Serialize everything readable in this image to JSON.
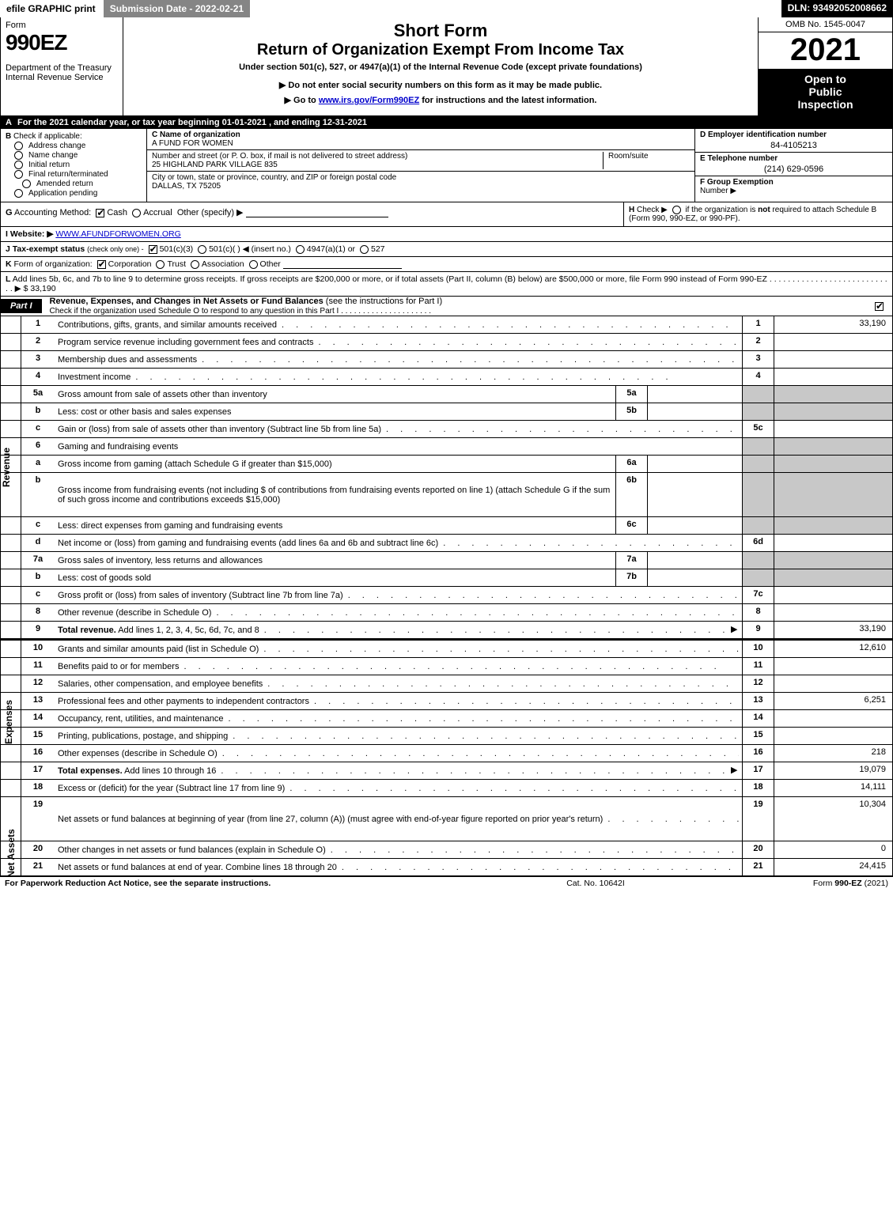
{
  "topbar": {
    "efile": "efile GRAPHIC print",
    "submission": "Submission Date - 2022-02-21",
    "dln": "DLN: 93492052008662"
  },
  "header": {
    "form_word": "Form",
    "form_num": "990EZ",
    "dept1": "Department of the Treasury",
    "dept2": "Internal Revenue Service",
    "short_form": "Short Form",
    "return_title": "Return of Organization Exempt From Income Tax",
    "under": "Under section 501(c), 527, or 4947(a)(1) of the Internal Revenue Code (except private foundations)",
    "warn": "▶ Do not enter social security numbers on this form as it may be made public.",
    "goto_prefix": "▶ Go to ",
    "goto_link": "www.irs.gov/Form990EZ",
    "goto_suffix": " for instructions and the latest information.",
    "omb": "OMB No. 1545-0047",
    "year": "2021",
    "open1": "Open to",
    "open2": "Public",
    "open3": "Inspection"
  },
  "lineA": {
    "letter": "A",
    "text": "For the 2021 calendar year, or tax year beginning 01-01-2021 , and ending 12-31-2021"
  },
  "sectionB": {
    "letter": "B",
    "label": "Check if applicable:",
    "opts": [
      "Address change",
      "Name change",
      "Initial return",
      "Final return/terminated",
      "Amended return",
      "Application pending"
    ]
  },
  "sectionC": {
    "name_lbl": "C Name of organization",
    "name_val": "A FUND FOR WOMEN",
    "street_lbl": "Number and street (or P. O. box, if mail is not delivered to street address)",
    "street_val": "25 HIGHLAND PARK VILLAGE 835",
    "room_lbl": "Room/suite",
    "city_lbl": "City or town, state or province, country, and ZIP or foreign postal code",
    "city_val": "DALLAS, TX  75205"
  },
  "sectionDEF": {
    "d_lbl": "D Employer identification number",
    "d_val": "84-4105213",
    "e_lbl": "E Telephone number",
    "e_val": "(214) 629-0596",
    "f_lbl": "F Group Exemption",
    "f_lbl2": "Number   ▶"
  },
  "lineG": {
    "letter": "G",
    "label": "Accounting Method:",
    "cash": "Cash",
    "accrual": "Accrual",
    "other": "Other (specify) ▶"
  },
  "lineH": {
    "letter": "H",
    "text1": "Check ▶",
    "text2": "if the organization is ",
    "not": "not",
    "text3": " required to attach Schedule B",
    "text4": "(Form 990, 990-EZ, or 990-PF)."
  },
  "lineI": {
    "letter": "I",
    "label": "Website: ▶",
    "url": "WWW.AFUNDFORWOMEN.ORG"
  },
  "lineJ": {
    "letter": "J",
    "label": "Tax-exempt status",
    "sub": "(check only one) -",
    "o1": "501(c)(3)",
    "o2": "501(c)(  ) ◀ (insert no.)",
    "o3": "4947(a)(1) or",
    "o4": "527"
  },
  "lineK": {
    "letter": "K",
    "label": "Form of organization:",
    "o1": "Corporation",
    "o2": "Trust",
    "o3": "Association",
    "o4": "Other"
  },
  "lineL": {
    "letter": "L",
    "text": "Add lines 5b, 6c, and 7b to line 9 to determine gross receipts. If gross receipts are $200,000 or more, or if total assets (Part II, column (B) below) are $500,000 or more, file Form 990 instead of Form 990-EZ  . . . . . . . . . . . . . . . . . . . . . . . . . . . . ▶ $ 33,190"
  },
  "part1": {
    "tab": "Part I",
    "title": "Revenue, Expenses, and Changes in Net Assets or Fund Balances ",
    "sub": "(see the instructions for Part I)",
    "check_line": "Check if the organization used Schedule O to respond to any question in this Part I . . . . . . . . . . . . . . . . . . . . ."
  },
  "vlabels": {
    "revenue": "Revenue",
    "expenses": "Expenses",
    "netassets": "Net Assets"
  },
  "rows": [
    {
      "n": "1",
      "desc": "Contributions, gifts, grants, and similar amounts received",
      "num": "1",
      "amt": "33,190"
    },
    {
      "n": "2",
      "desc": "Program service revenue including government fees and contracts",
      "num": "2",
      "amt": ""
    },
    {
      "n": "3",
      "desc": "Membership dues and assessments",
      "num": "3",
      "amt": ""
    },
    {
      "n": "4",
      "desc": "Investment income",
      "num": "4",
      "amt": ""
    },
    {
      "n": "5a",
      "desc": "Gross amount from sale of assets other than inventory",
      "sub": "5a",
      "gray": true
    },
    {
      "n": "b",
      "desc": "Less: cost or other basis and sales expenses",
      "sub": "5b",
      "gray": true
    },
    {
      "n": "c",
      "desc": "Gain or (loss) from sale of assets other than inventory (Subtract line 5b from line 5a)",
      "num": "5c",
      "amt": ""
    },
    {
      "n": "6",
      "desc": "Gaming and fundraising events",
      "gray": true,
      "noamt": true
    },
    {
      "n": "a",
      "desc": "Gross income from gaming (attach Schedule G if greater than $15,000)",
      "sub": "6a",
      "gray": true
    },
    {
      "n": "b",
      "desc": "Gross income from fundraising events (not including $                    of contributions from fundraising events reported on line 1) (attach Schedule G if the sum of such gross income and contributions exceeds $15,000)",
      "sub": "6b",
      "gray": true,
      "tall": true
    },
    {
      "n": "c",
      "desc": "Less: direct expenses from gaming and fundraising events",
      "sub": "6c",
      "gray": true
    },
    {
      "n": "d",
      "desc": "Net income or (loss) from gaming and fundraising events (add lines 6a and 6b and subtract line 6c)",
      "num": "6d",
      "amt": ""
    },
    {
      "n": "7a",
      "desc": "Gross sales of inventory, less returns and allowances",
      "sub": "7a",
      "gray": true
    },
    {
      "n": "b",
      "desc": "Less: cost of goods sold",
      "sub": "7b",
      "gray": true
    },
    {
      "n": "c",
      "desc": "Gross profit or (loss) from sales of inventory (Subtract line 7b from line 7a)",
      "num": "7c",
      "amt": ""
    },
    {
      "n": "8",
      "desc": "Other revenue (describe in Schedule O)",
      "num": "8",
      "amt": ""
    },
    {
      "n": "9",
      "desc": "Total revenue. Add lines 1, 2, 3, 4, 5c, 6d, 7c, and 8",
      "num": "9",
      "amt": "33,190",
      "bold": true,
      "arrow": true
    }
  ],
  "rows_exp": [
    {
      "n": "10",
      "desc": "Grants and similar amounts paid (list in Schedule O)",
      "num": "10",
      "amt": "12,610"
    },
    {
      "n": "11",
      "desc": "Benefits paid to or for members",
      "num": "11",
      "amt": ""
    },
    {
      "n": "12",
      "desc": "Salaries, other compensation, and employee benefits",
      "num": "12",
      "amt": ""
    },
    {
      "n": "13",
      "desc": "Professional fees and other payments to independent contractors",
      "num": "13",
      "amt": "6,251"
    },
    {
      "n": "14",
      "desc": "Occupancy, rent, utilities, and maintenance",
      "num": "14",
      "amt": ""
    },
    {
      "n": "15",
      "desc": "Printing, publications, postage, and shipping",
      "num": "15",
      "amt": ""
    },
    {
      "n": "16",
      "desc": "Other expenses (describe in Schedule O)",
      "num": "16",
      "amt": "218"
    },
    {
      "n": "17",
      "desc": "Total expenses. Add lines 10 through 16",
      "num": "17",
      "amt": "19,079",
      "bold": true,
      "arrow": true
    }
  ],
  "rows_net": [
    {
      "n": "18",
      "desc": "Excess or (deficit) for the year (Subtract line 17 from line 9)",
      "num": "18",
      "amt": "14,111"
    },
    {
      "n": "19",
      "desc": "Net assets or fund balances at beginning of year (from line 27, column (A)) (must agree with end-of-year figure reported on prior year's return)",
      "num": "19",
      "amt": "10,304",
      "tall": true
    },
    {
      "n": "20",
      "desc": "Other changes in net assets or fund balances (explain in Schedule O)",
      "num": "20",
      "amt": "0"
    },
    {
      "n": "21",
      "desc": "Net assets or fund balances at end of year. Combine lines 18 through 20",
      "num": "21",
      "amt": "24,415"
    }
  ],
  "footer": {
    "f1": "For Paperwork Reduction Act Notice, see the separate instructions.",
    "f2": "Cat. No. 10642I",
    "f3a": "Form ",
    "f3b": "990-EZ",
    "f3c": " (2021)"
  }
}
